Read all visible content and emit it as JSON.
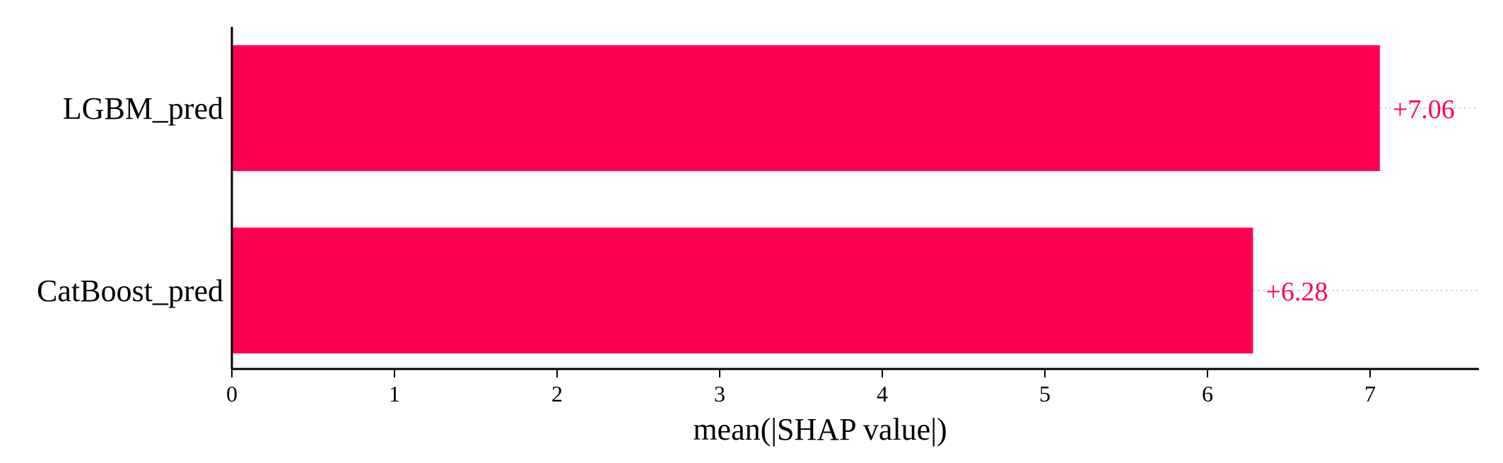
{
  "chart_data": {
    "type": "bar",
    "orientation": "horizontal",
    "categories": [
      "LGBM_pred",
      "CatBoost_pred"
    ],
    "values": [
      7.06,
      6.28
    ],
    "data_labels": [
      "+7.06",
      "+6.28"
    ],
    "title": "",
    "xlabel": "mean(|SHAP value|)",
    "ylabel": "",
    "xlim": [
      0,
      7.8
    ],
    "xticks": [
      0,
      1,
      2,
      3,
      4,
      5,
      6,
      7
    ],
    "xtick_labels": [
      "0",
      "1",
      "2",
      "3",
      "4",
      "5",
      "6",
      "7"
    ],
    "bar_color": "#ff0051",
    "label_color": "#ff0051",
    "grid": false,
    "legend": "none"
  }
}
